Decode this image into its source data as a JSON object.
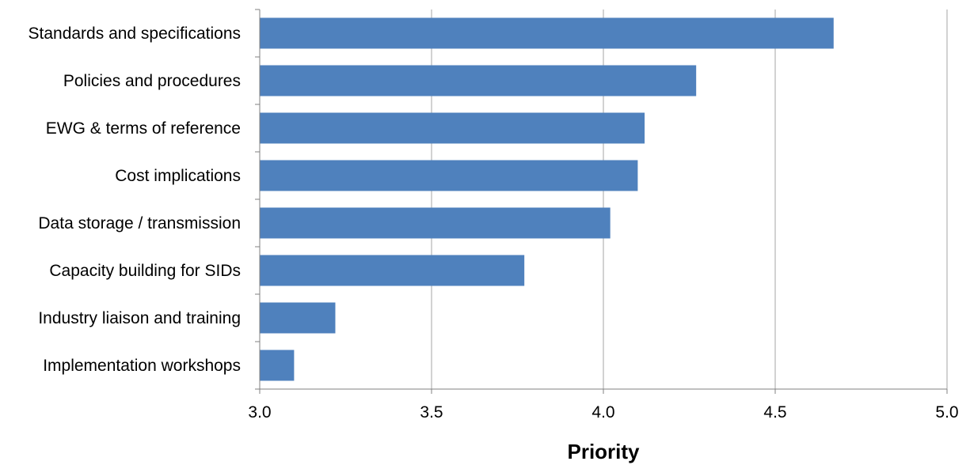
{
  "chart_data": {
    "type": "bar",
    "orientation": "horizontal",
    "categories": [
      "Standards and specifications",
      "Policies and procedures",
      "EWG & terms of reference",
      "Cost implications",
      "Data storage / transmission",
      "Capacity building for SIDs",
      "Industry liaison and training",
      "Implementation workshops"
    ],
    "values": [
      4.67,
      4.27,
      4.12,
      4.1,
      4.02,
      3.77,
      3.22,
      3.1
    ],
    "xlabel": "Priority",
    "ylabel": "",
    "xlim": [
      3.0,
      5.0
    ],
    "x_ticks": [
      "3.0",
      "3.5",
      "4.0",
      "4.5",
      "5.0"
    ],
    "x_tick_values": [
      3.0,
      3.5,
      4.0,
      4.5,
      5.0
    ],
    "grid": "vertical",
    "legend": "none",
    "bar_color": "#4f81bd",
    "grid_color": "#a6a6a6"
  }
}
